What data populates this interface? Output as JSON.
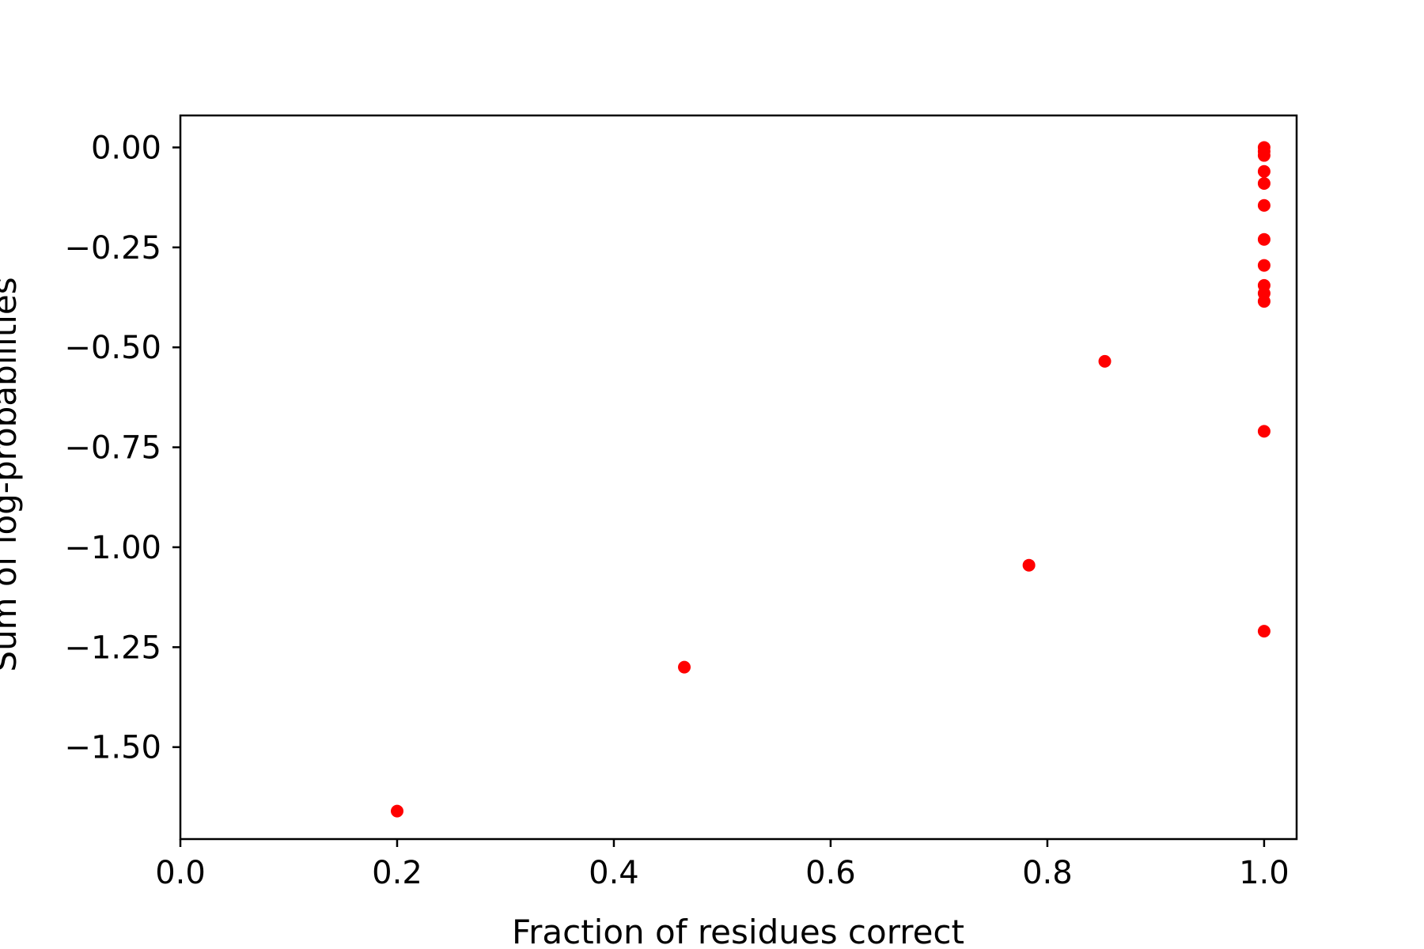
{
  "chart_data": {
    "type": "scatter",
    "title": "",
    "xlabel": "Fraction of residues correct",
    "ylabel": "Sum of log-probabilities",
    "xlim": [
      0.0,
      1.03
    ],
    "ylim": [
      -1.73,
      0.08
    ],
    "xticks": [
      0.0,
      0.2,
      0.4,
      0.6,
      0.8,
      1.0
    ],
    "xtick_labels": [
      "0.0",
      "0.2",
      "0.4",
      "0.6",
      "0.8",
      "1.0"
    ],
    "yticks": [
      0.0,
      -0.25,
      -0.5,
      -0.75,
      -1.0,
      -1.25,
      -1.5
    ],
    "ytick_labels": [
      "0.00",
      "−0.25",
      "−0.50",
      "−0.75",
      "−1.00",
      "−1.25",
      "−1.50"
    ],
    "grid": false,
    "legend": "none",
    "marker_color": "#ff0000",
    "points": [
      {
        "x": 0.2,
        "y": -1.66
      },
      {
        "x": 0.465,
        "y": -1.3
      },
      {
        "x": 0.783,
        "y": -1.045
      },
      {
        "x": 0.853,
        "y": -0.535
      },
      {
        "x": 1.0,
        "y": 0.0
      },
      {
        "x": 1.0,
        "y": -0.01
      },
      {
        "x": 1.0,
        "y": -0.02
      },
      {
        "x": 1.0,
        "y": -0.06
      },
      {
        "x": 1.0,
        "y": -0.09
      },
      {
        "x": 1.0,
        "y": -0.145
      },
      {
        "x": 1.0,
        "y": -0.23
      },
      {
        "x": 1.0,
        "y": -0.295
      },
      {
        "x": 1.0,
        "y": -0.345
      },
      {
        "x": 1.0,
        "y": -0.365
      },
      {
        "x": 1.0,
        "y": -0.385
      },
      {
        "x": 1.0,
        "y": -0.71
      },
      {
        "x": 1.0,
        "y": -1.21
      }
    ]
  }
}
